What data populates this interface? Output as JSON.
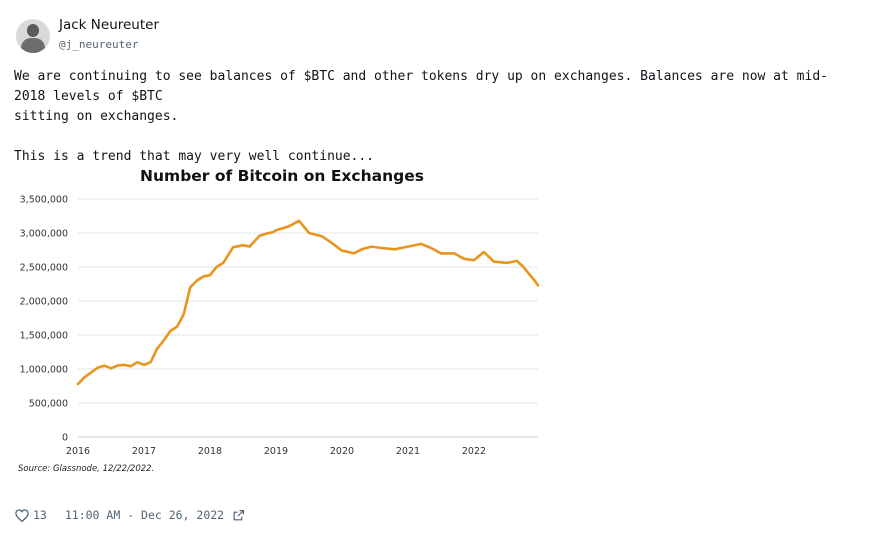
{
  "author": {
    "name": "Jack Neureuter",
    "handle": "@j_neureuter"
  },
  "tweet": {
    "text": "We are continuing to see balances of $BTC and other tokens dry up on exchanges. Balances are now at mid-2018 levels of $BTC\nsitting on exchanges.\n\nThis is a trend that may very well continue..."
  },
  "footer": {
    "likes": "13",
    "timestamp": "11:00 AM - Dec 26, 2022",
    "like_icon": "heart-icon",
    "share_icon": "external-link-icon"
  },
  "colors": {
    "series": "#e8951f",
    "grid": "#e6e6e6",
    "text_secondary": "#536471"
  },
  "chart_data": {
    "type": "line",
    "title": "Number of Bitcoin on Exchanges",
    "source": "Source: Glassnode, 12/22/2022.",
    "xlabel": "",
    "ylabel": "",
    "xlim": [
      2016,
      2022.97
    ],
    "ylim": [
      0,
      3500000
    ],
    "x_ticks": [
      "2016",
      "2017",
      "2018",
      "2019",
      "2020",
      "2021",
      "2022"
    ],
    "y_ticks": [
      "0",
      "500,000",
      "1,000,000",
      "1,500,000",
      "2,000,000",
      "2,500,000",
      "3,000,000",
      "3,500,000"
    ],
    "grid": true,
    "legend": "none",
    "series": [
      {
        "x": [
          2016.0,
          2016.1,
          2016.2,
          2016.3,
          2016.4,
          2016.5,
          2016.6,
          2016.7,
          2016.8,
          2016.9,
          2017.0,
          2017.1,
          2017.2,
          2017.3,
          2017.4,
          2017.5,
          2017.6,
          2017.7,
          2017.8,
          2017.9,
          2018.0,
          2018.1,
          2018.2,
          2018.35,
          2018.5,
          2018.6,
          2018.75,
          2018.85,
          2018.95,
          2019.0,
          2019.2,
          2019.35,
          2019.5,
          2019.7,
          2019.85,
          2020.0,
          2020.1,
          2020.18,
          2020.3,
          2020.45,
          2020.6,
          2020.8,
          2021.0,
          2021.2,
          2021.35,
          2021.5,
          2021.7,
          2021.85,
          2022.0,
          2022.15,
          2022.3,
          2022.5,
          2022.65,
          2022.75,
          2022.85,
          2022.92,
          2022.97
        ],
        "y": [
          780000,
          880000,
          950000,
          1020000,
          1050000,
          1010000,
          1050000,
          1060000,
          1040000,
          1100000,
          1060000,
          1100000,
          1300000,
          1420000,
          1560000,
          1620000,
          1800000,
          2200000,
          2300000,
          2360000,
          2380000,
          2500000,
          2560000,
          2790000,
          2820000,
          2800000,
          2960000,
          2990000,
          3010000,
          3040000,
          3100000,
          3180000,
          3000000,
          2950000,
          2850000,
          2740000,
          2720000,
          2700000,
          2760000,
          2800000,
          2780000,
          2760000,
          2800000,
          2840000,
          2780000,
          2700000,
          2700000,
          2620000,
          2600000,
          2720000,
          2580000,
          2560000,
          2590000,
          2500000,
          2380000,
          2300000,
          2230000
        ]
      }
    ]
  }
}
